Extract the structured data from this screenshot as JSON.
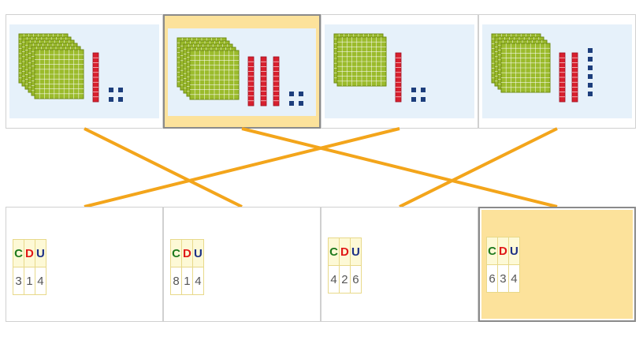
{
  "colors": {
    "hundreds": "#9bbb2c",
    "tens": "#d8202e",
    "units": "#1d3e7c",
    "line": "#f3a51b",
    "highlight": "#fce29b"
  },
  "pictures": [
    {
      "hundreds": 6,
      "tens": 1,
      "units": 4,
      "selected": false
    },
    {
      "hundreds": 5,
      "tens": 3,
      "units": 4,
      "selected": true
    },
    {
      "hundreds": 2,
      "tens": 1,
      "units": 4,
      "selected": false
    },
    {
      "hundreds": 4,
      "tens": 2,
      "units": 6,
      "selected": false
    }
  ],
  "table_headers": {
    "c": "C",
    "d": "D",
    "u": "U"
  },
  "tables": [
    {
      "c": "3",
      "d": "1",
      "u": "4",
      "selected": false
    },
    {
      "c": "8",
      "d": "1",
      "u": "4",
      "selected": false
    },
    {
      "c": "4",
      "d": "2",
      "u": "6",
      "selected": false
    },
    {
      "c": "6",
      "d": "3",
      "u": "4",
      "selected": true
    }
  ]
}
